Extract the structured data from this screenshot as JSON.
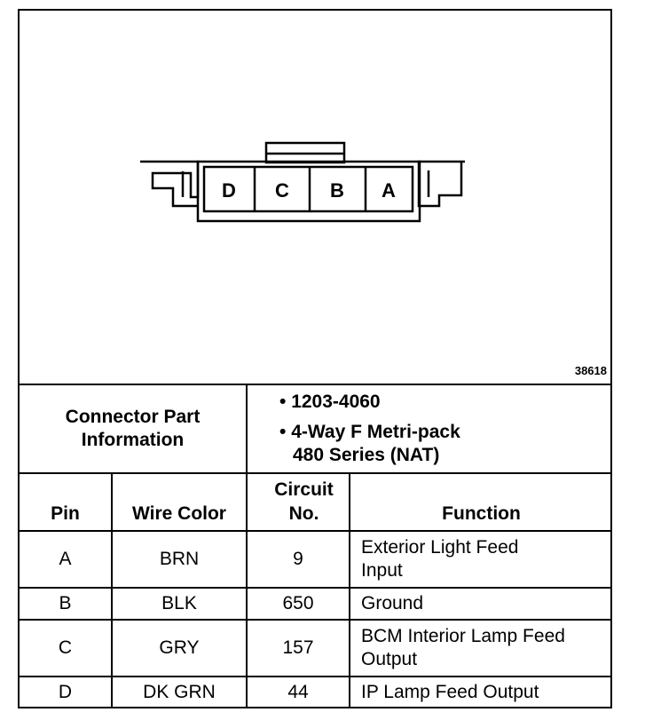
{
  "figure_number": "38618",
  "connector": {
    "cavities": [
      "D",
      "C",
      "B",
      "A"
    ]
  },
  "part_info": {
    "label": "Connector Part Information",
    "items": [
      "1203-4060",
      "4-Way F Metri-pack",
      "480 Series (NAT)"
    ]
  },
  "table": {
    "headers": {
      "pin": "Pin",
      "wire_color": "Wire Color",
      "circuit": "Circuit No.",
      "function": "Function"
    },
    "rows": [
      {
        "pin": "A",
        "wire_color": "BRN",
        "circuit": "9",
        "function": "Exterior Light Feed Input"
      },
      {
        "pin": "B",
        "wire_color": "BLK",
        "circuit": "650",
        "function": "Ground"
      },
      {
        "pin": "C",
        "wire_color": "GRY",
        "circuit": "157",
        "function": "BCM Interior Lamp Feed Output"
      },
      {
        "pin": "D",
        "wire_color": "DK GRN",
        "circuit": "44",
        "function": "IP Lamp Feed Output"
      }
    ]
  }
}
